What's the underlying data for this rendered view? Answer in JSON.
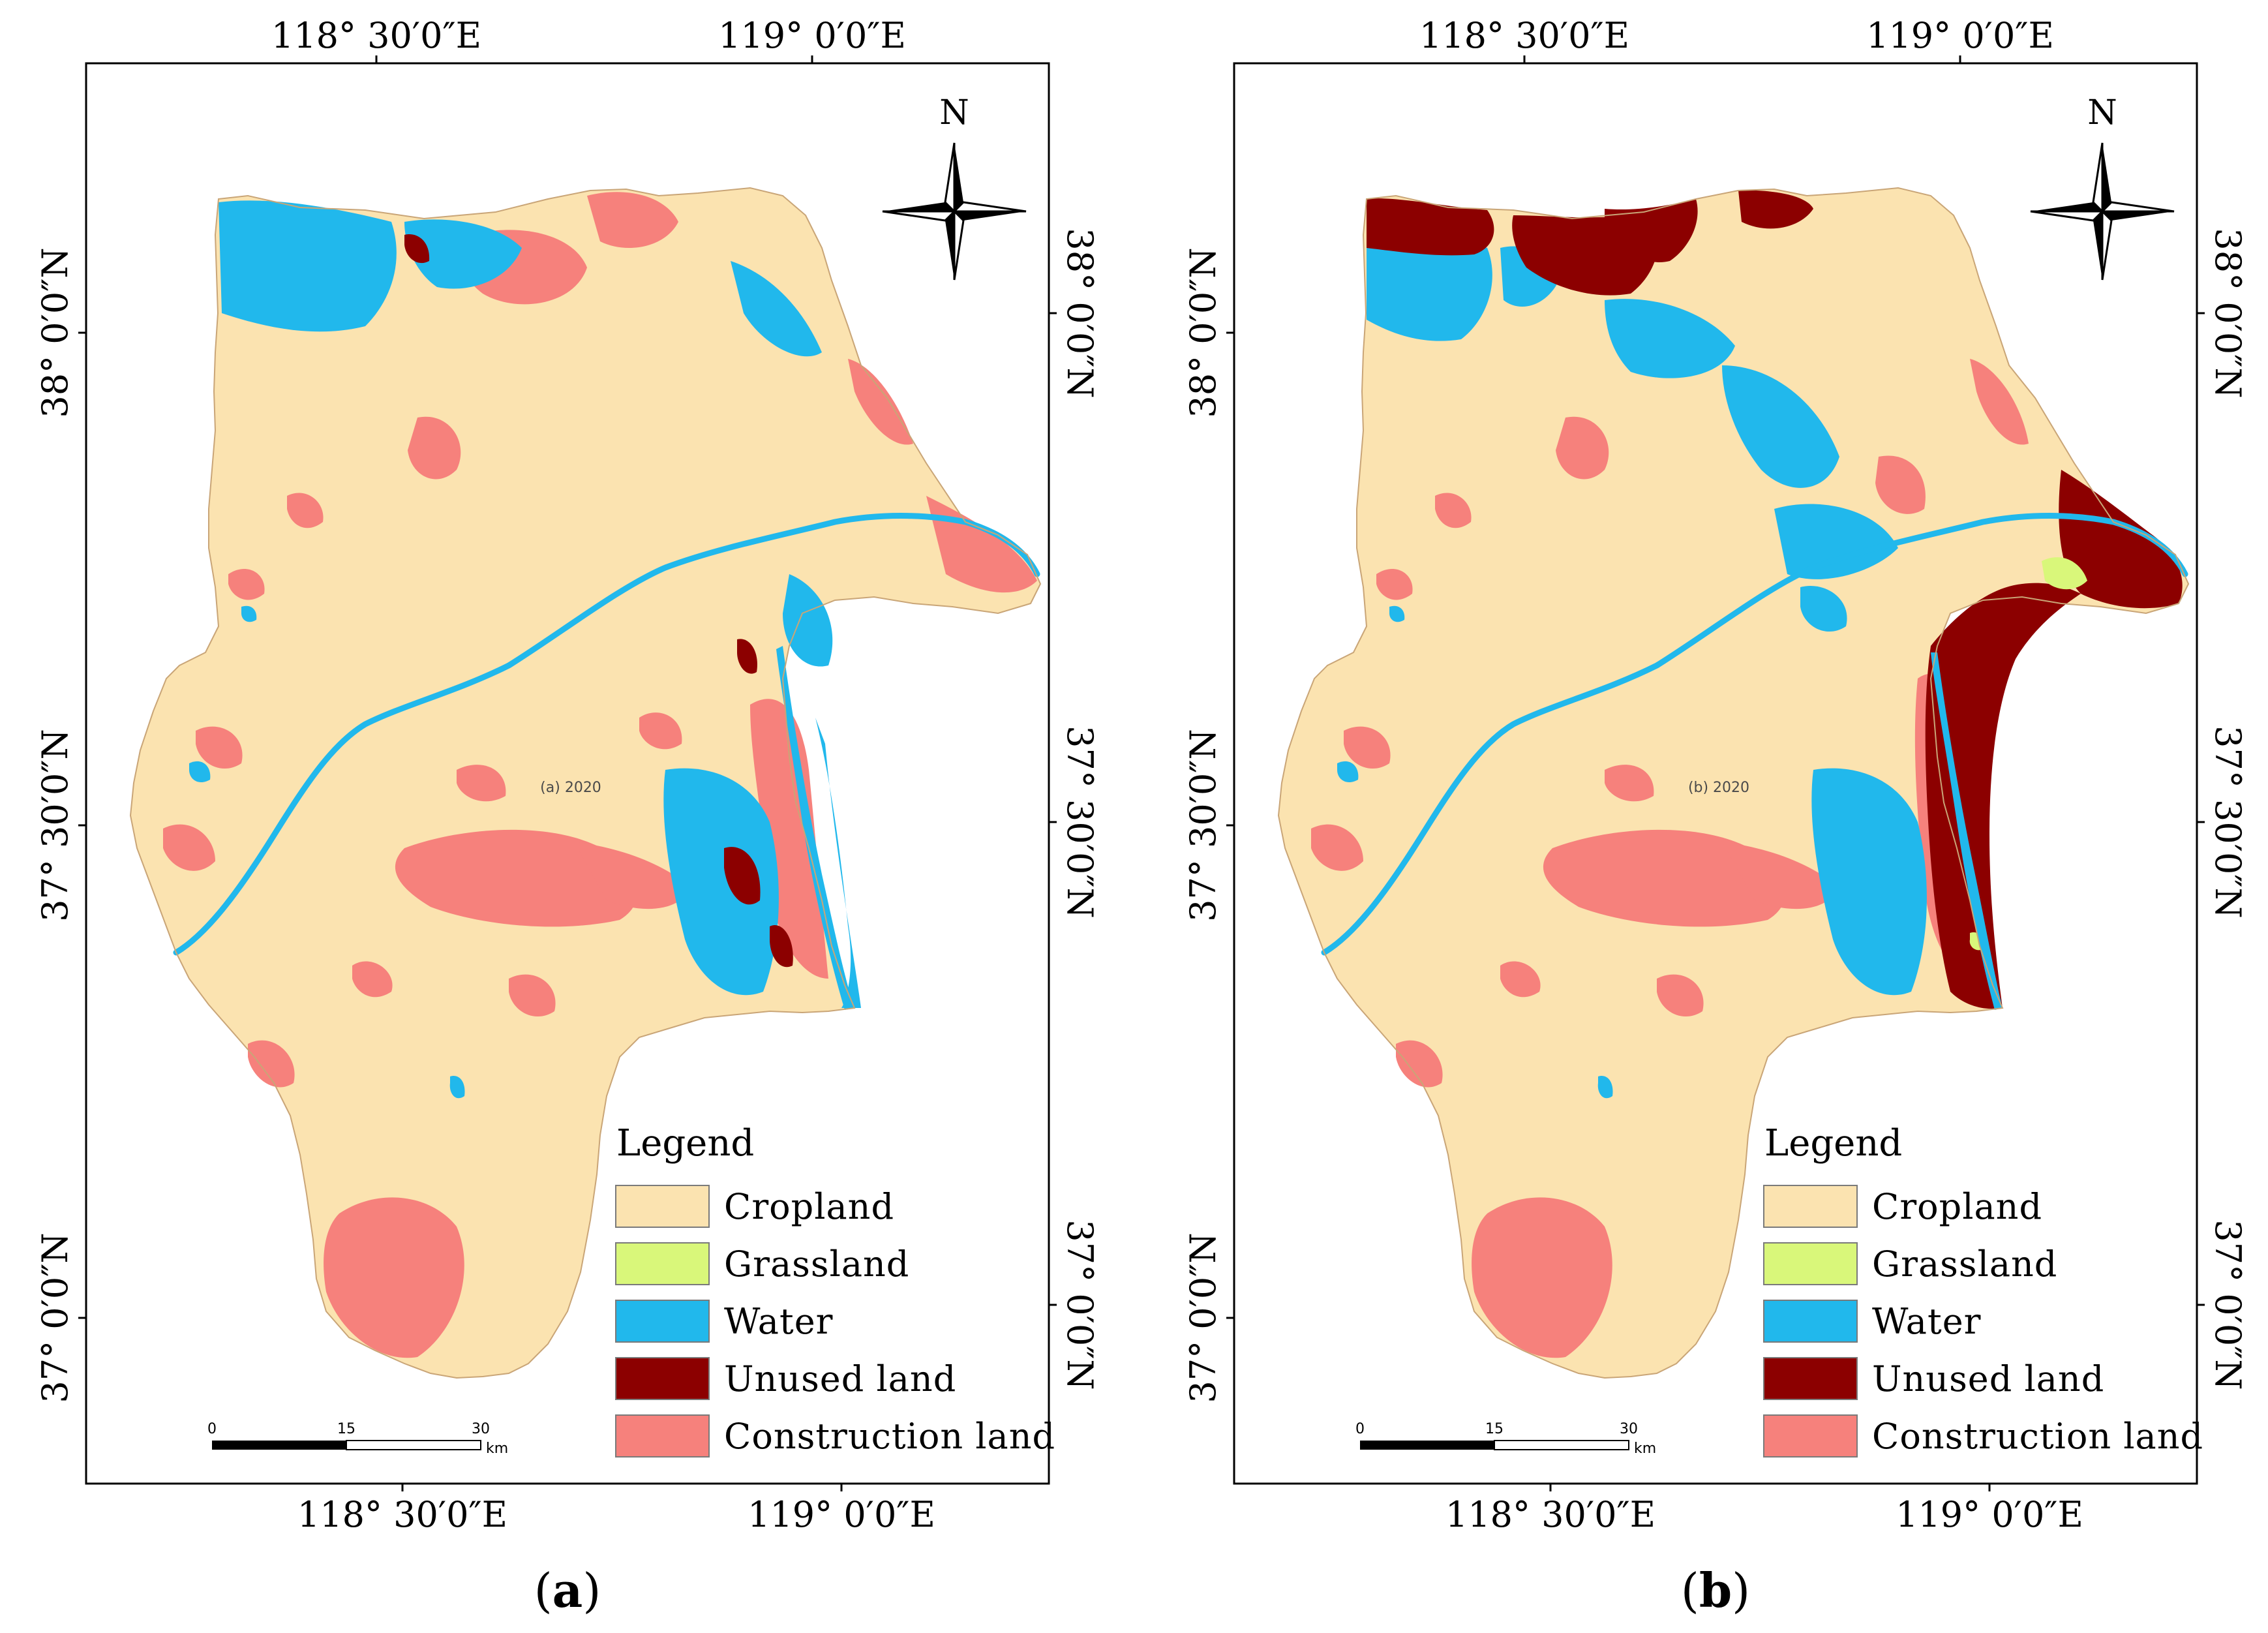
{
  "colors": {
    "cropland": "#fbe3b0",
    "grassland": "#d9f77a",
    "water": "#21b8ec",
    "unused_land": "#8c0000",
    "construction_land": "#f6817c"
  },
  "coords": {
    "lon_1": "118° 30′0″E",
    "lon_2": "119° 0′0″E",
    "lat_1": "38° 0′0″N",
    "lat_2": "37° 30′0″N",
    "lat_3": "37° 0′0″N"
  },
  "north_label": "N",
  "scale_bar": {
    "ticks": [
      "0",
      "15",
      "30"
    ],
    "unit": "km"
  },
  "legend": {
    "title": "Legend",
    "items": [
      {
        "label": "Cropland",
        "color": "#fbe3b0"
      },
      {
        "label": "Grassland",
        "color": "#d9f77a"
      },
      {
        "label": "Water",
        "color": "#21b8ec"
      },
      {
        "label": "Unused land",
        "color": "#8c0000"
      },
      {
        "label": "Construction land",
        "color": "#f6817c"
      }
    ]
  },
  "panels": [
    {
      "label_open": "(",
      "label_letter": "a",
      "label_close": ")",
      "year_label": "(a) 2020"
    },
    {
      "label_open": "(",
      "label_letter": "b",
      "label_close": ")",
      "year_label": "(b) 2020"
    }
  ]
}
